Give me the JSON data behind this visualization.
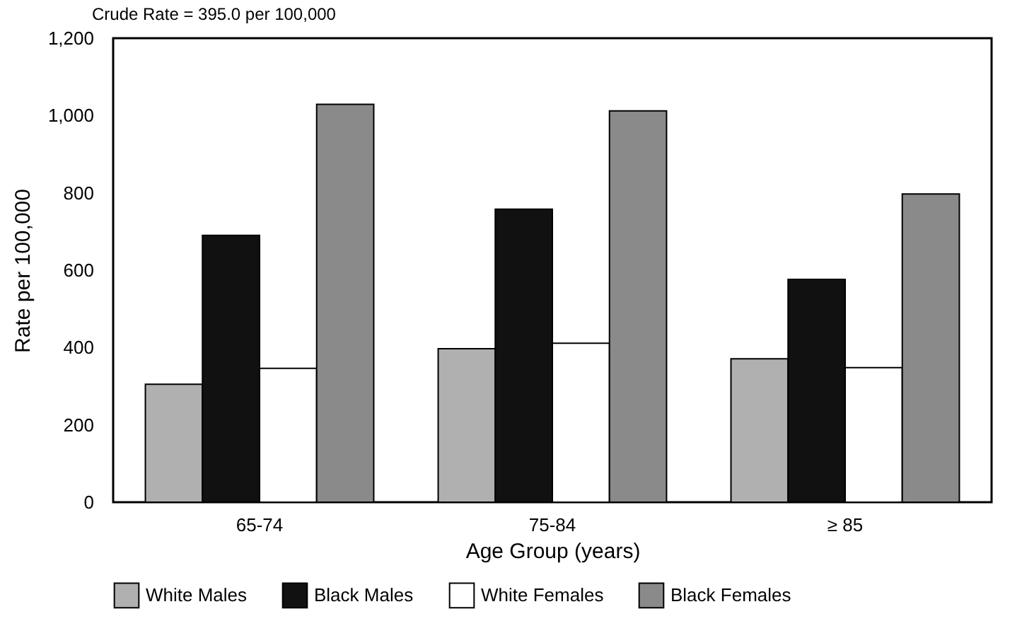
{
  "chart_data": {
    "type": "bar",
    "xlabel": "Age Group (years)",
    "ylabel": "Rate per 100,000",
    "annotations": [
      "Crude Rate = 395.0 per 100,000"
    ],
    "categories": [
      "65-74",
      "75-84",
      "≥ 85"
    ],
    "series": [
      {
        "name": "White Males",
        "color": "#b0b0b0",
        "values": [
          305,
          397,
          371
        ]
      },
      {
        "name": "Black Males",
        "color": "#111111",
        "values": [
          690,
          758,
          576
        ]
      },
      {
        "name": "White Females",
        "color": "#ffffff",
        "values": [
          346,
          411,
          348
        ]
      },
      {
        "name": "Black Females",
        "color": "#8a8a8a",
        "values": [
          1029,
          1012,
          797
        ]
      }
    ],
    "ylim": [
      0,
      1200
    ],
    "yticks": [
      0,
      200,
      400,
      600,
      800,
      {
        "value": 1000,
        "label": "1,000"
      },
      {
        "value": 1200,
        "label": "1,200"
      }
    ],
    "grid": false,
    "legend": "bottom"
  }
}
